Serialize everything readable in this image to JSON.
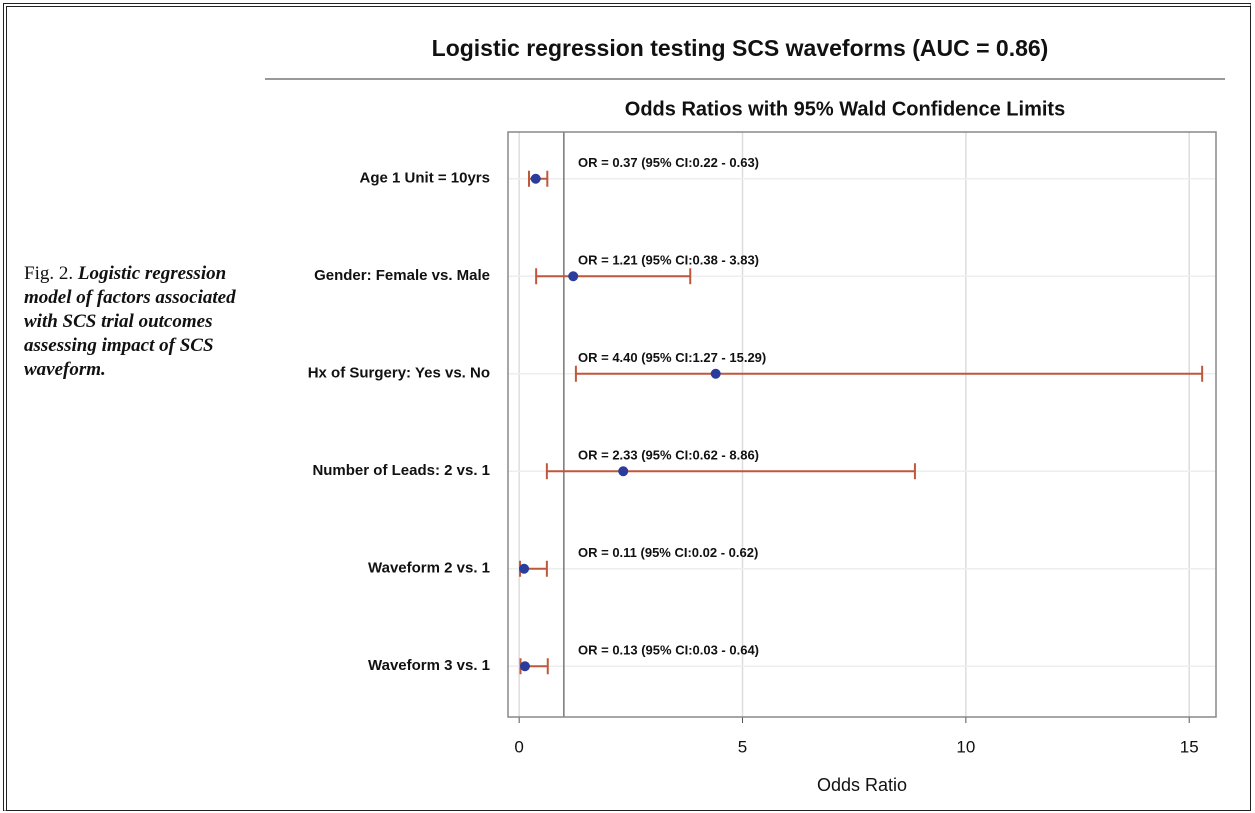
{
  "caption": {
    "label": "Fig. 2.",
    "text": "Logistic regression model of factors associated with SCS trial outcomes assessing impact of SCS waveform."
  },
  "chart_data": {
    "type": "forest",
    "title": "Logistic regression testing SCS waveforms (AUC = 0.86)",
    "subtitle": "Odds Ratios with 95% Wald Confidence Limits",
    "xlabel": "Odds Ratio",
    "categories": [
      "Age 1 Unit = 10yrs",
      "Gender: Female vs. Male",
      "Hx of Surgery: Yes vs. No",
      "Number of  Leads: 2 vs. 1",
      "Waveform 2 vs. 1",
      "Waveform 3 vs. 1"
    ],
    "values": [
      0.37,
      1.21,
      4.4,
      2.33,
      0.11,
      0.13
    ],
    "lower": [
      0.22,
      0.38,
      1.27,
      0.62,
      0.02,
      0.03
    ],
    "upper": [
      0.63,
      3.83,
      15.29,
      8.86,
      0.62,
      0.64
    ],
    "value_labels": [
      "OR = 0.37 (95% CI:0.22 - 0.63)",
      "OR = 1.21 (95% CI:0.38 - 3.83)",
      "OR = 4.40 (95% CI:1.27 - 15.29)",
      "OR = 2.33 (95% CI:0.62 - 8.86)",
      "OR = 0.11 (95% CI:0.02 - 0.62)",
      "OR = 0.13 (95% CI:0.03 - 0.64)"
    ],
    "xlim": [
      -0.25,
      15.6
    ],
    "xticks": [
      0,
      5,
      10,
      15
    ],
    "reference_line": 1,
    "grid": true,
    "point_color": "#2a3d9c",
    "ci_color": "#c0573a"
  }
}
